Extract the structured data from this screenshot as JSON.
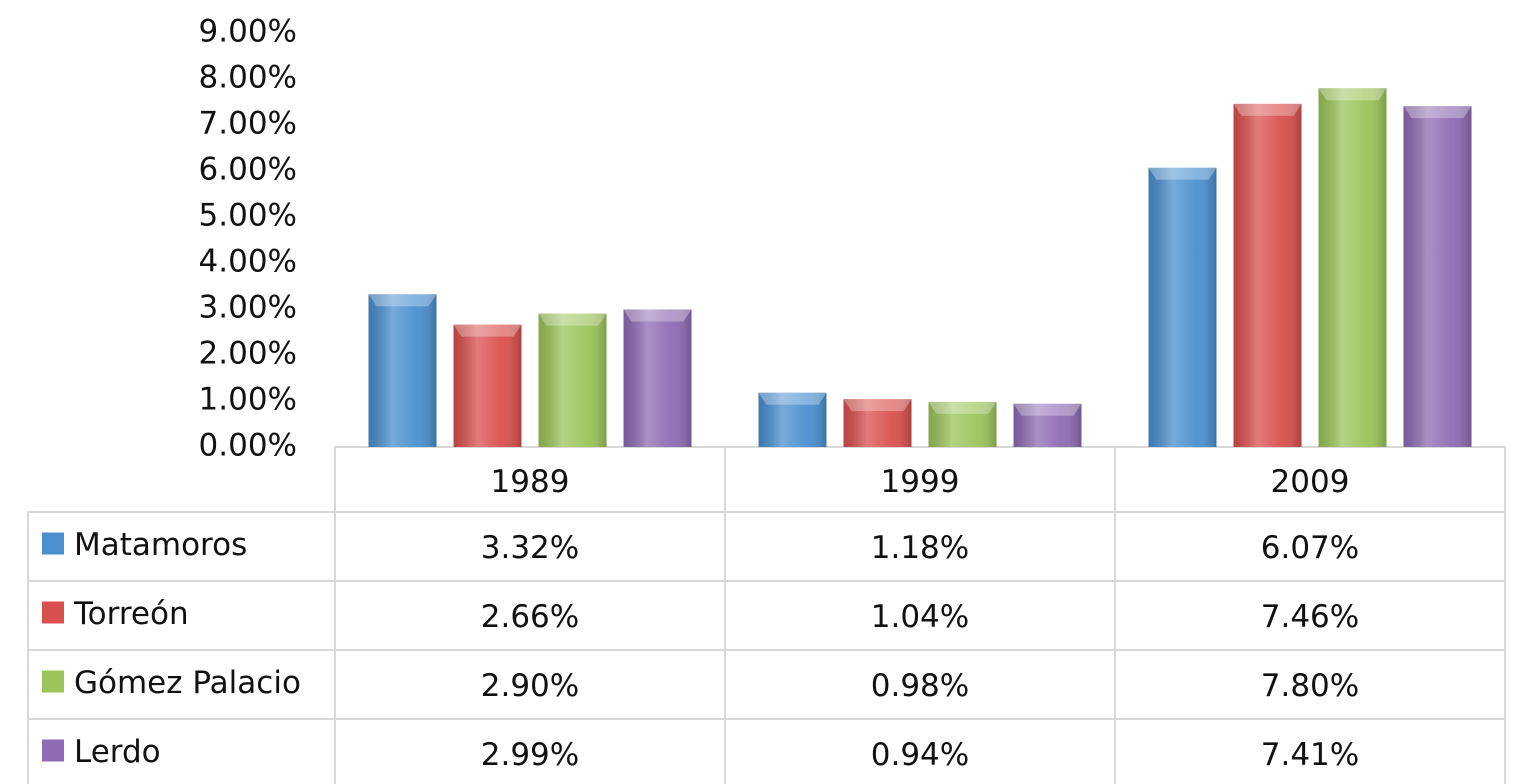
{
  "chart_data": {
    "type": "bar",
    "categories": [
      "1989",
      "1999",
      "2009"
    ],
    "series": [
      {
        "name": "Matamoros",
        "color": "#4a8fcf",
        "values": [
          3.32,
          1.18,
          6.07
        ],
        "value_labels": [
          "3.32%",
          "1.18%",
          "6.07%"
        ]
      },
      {
        "name": "Torreón",
        "color": "#d9504e",
        "values": [
          2.66,
          1.04,
          7.46
        ],
        "value_labels": [
          "2.66%",
          "1.04%",
          "7.46%"
        ]
      },
      {
        "name": "Gómez Palacio",
        "color": "#9bc45a",
        "values": [
          2.9,
          0.98,
          7.8
        ],
        "value_labels": [
          "2.90%",
          "0.98%",
          "7.80%"
        ]
      },
      {
        "name": "Lerdo",
        "color": "#8e6bb3",
        "values": [
          2.99,
          0.94,
          7.41
        ],
        "value_labels": [
          "2.99%",
          "0.94%",
          "7.41%"
        ]
      }
    ],
    "ylim": [
      0,
      9
    ],
    "yticks": [
      {
        "value": 0,
        "label": "0.00%"
      },
      {
        "value": 1,
        "label": "1.00%"
      },
      {
        "value": 2,
        "label": "2.00%"
      },
      {
        "value": 3,
        "label": "3.00%"
      },
      {
        "value": 4,
        "label": "4.00%"
      },
      {
        "value": 5,
        "label": "5.00%"
      },
      {
        "value": 6,
        "label": "6.00%"
      },
      {
        "value": 7,
        "label": "7.00%"
      },
      {
        "value": 8,
        "label": "8.00%"
      },
      {
        "value": 9,
        "label": "9.00%"
      }
    ],
    "grid": false,
    "legend": "table"
  }
}
